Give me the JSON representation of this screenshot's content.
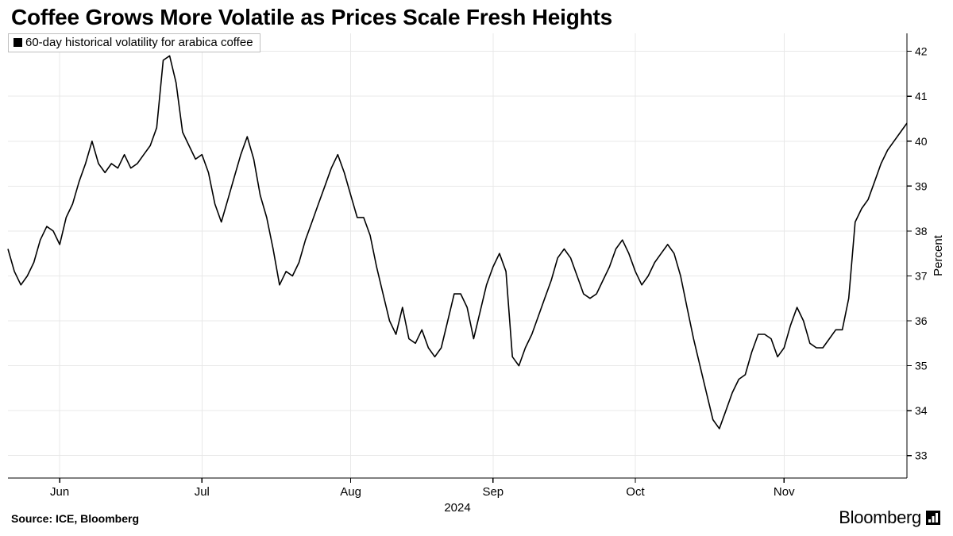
{
  "title": "Coffee Grows More Volatile as Prices Scale Fresh Heights",
  "legend": {
    "label": "60-day historical volatility for arabica coffee",
    "swatch_color": "#000000"
  },
  "source": "Source: ICE, Bloomberg",
  "brand": "Bloomberg",
  "chart": {
    "type": "line",
    "background_color": "#ffffff",
    "grid_color": "#e8e8e8",
    "line_color": "#000000",
    "line_width": 1.6,
    "yaxis": {
      "title": "Percent",
      "side": "right",
      "min": 32.5,
      "max": 42.4,
      "ticks": [
        33,
        34,
        35,
        36,
        37,
        38,
        39,
        40,
        41,
        42
      ],
      "label_fontsize": 14,
      "title_fontsize": 15
    },
    "xaxis": {
      "min": 0,
      "max": 139,
      "year_label": "2024",
      "ticks": [
        {
          "pos": 8,
          "label": "Jun"
        },
        {
          "pos": 30,
          "label": "Jul"
        },
        {
          "pos": 53,
          "label": "Aug"
        },
        {
          "pos": 75,
          "label": "Sep"
        },
        {
          "pos": 97,
          "label": "Oct"
        },
        {
          "pos": 120,
          "label": "Nov"
        }
      ],
      "label_fontsize": 15
    },
    "series": {
      "name": "60-day historical volatility",
      "values": [
        37.6,
        37.1,
        36.8,
        37.0,
        37.3,
        37.8,
        38.1,
        38.0,
        37.7,
        38.3,
        38.6,
        39.1,
        39.5,
        40.0,
        39.5,
        39.3,
        39.5,
        39.4,
        39.7,
        39.4,
        39.5,
        39.7,
        39.9,
        40.3,
        41.8,
        41.9,
        41.3,
        40.2,
        39.9,
        39.6,
        39.7,
        39.3,
        38.6,
        38.2,
        38.7,
        39.2,
        39.7,
        40.1,
        39.6,
        38.8,
        38.3,
        37.6,
        36.8,
        37.1,
        37.0,
        37.3,
        37.8,
        38.2,
        38.6,
        39.0,
        39.4,
        39.7,
        39.3,
        38.8,
        38.3,
        38.3,
        37.9,
        37.2,
        36.6,
        36.0,
        35.7,
        36.3,
        35.6,
        35.5,
        35.8,
        35.4,
        35.2,
        35.4,
        36.0,
        36.6,
        36.6,
        36.3,
        35.6,
        36.2,
        36.8,
        37.2,
        37.5,
        37.1,
        35.2,
        35.0,
        35.4,
        35.7,
        36.1,
        36.5,
        36.9,
        37.4,
        37.6,
        37.4,
        37.0,
        36.6,
        36.5,
        36.6,
        36.9,
        37.2,
        37.6,
        37.8,
        37.5,
        37.1,
        36.8,
        37.0,
        37.3,
        37.5,
        37.7,
        37.5,
        37.0,
        36.3,
        35.6,
        35.0,
        34.4,
        33.8,
        33.6,
        34.0,
        34.4,
        34.7,
        34.8,
        35.3,
        35.7,
        35.7,
        35.6,
        35.2,
        35.4,
        35.9,
        36.3,
        36.0,
        35.5,
        35.4,
        35.4,
        35.6,
        35.8,
        35.8,
        36.5,
        38.2,
        38.5,
        38.7,
        39.1,
        39.5,
        39.8,
        40.0,
        40.2,
        40.4
      ]
    }
  }
}
